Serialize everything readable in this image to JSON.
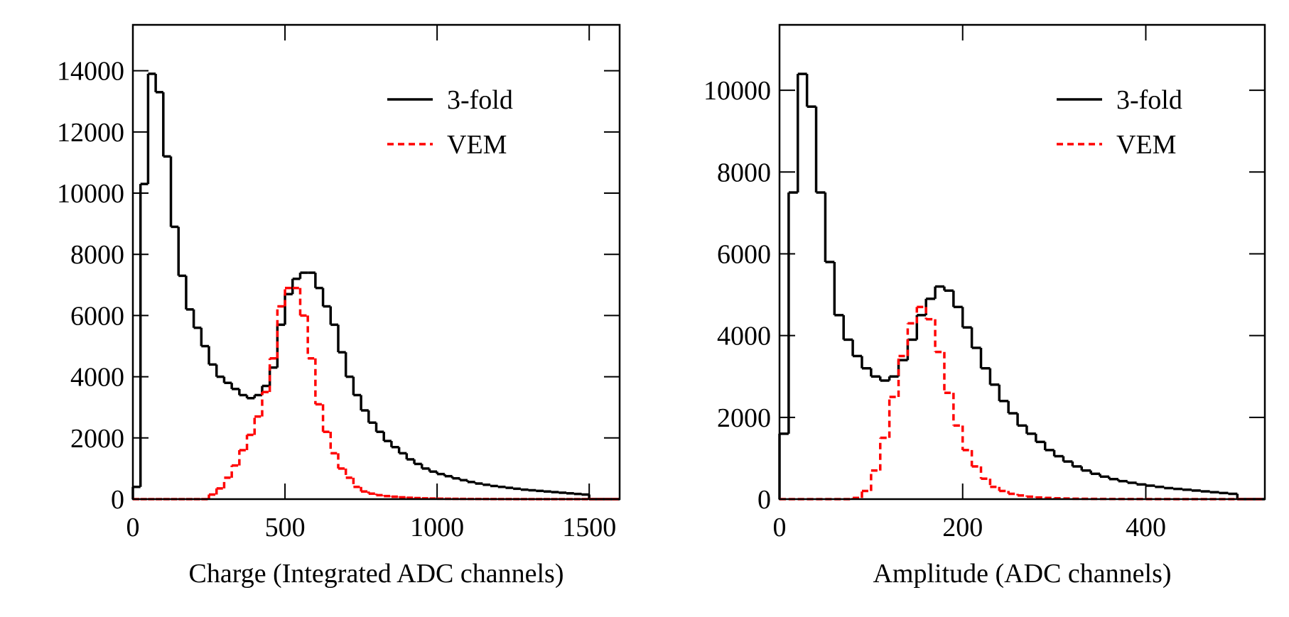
{
  "chart_data": [
    {
      "type": "histogram",
      "xlabel": "Charge (Integrated ADC channels)",
      "bins": [
        0,
        25,
        50,
        75,
        100,
        125,
        150,
        175,
        200,
        225,
        250,
        275,
        300,
        325,
        350,
        375,
        400,
        425,
        450,
        475,
        500,
        525,
        550,
        575,
        600,
        625,
        650,
        675,
        700,
        725,
        750,
        775,
        800,
        825,
        850,
        875,
        900,
        925,
        950,
        975,
        1000,
        1025,
        1050,
        1075,
        1100,
        1125,
        1150,
        1175,
        1200,
        1225,
        1250,
        1275,
        1300,
        1325,
        1350,
        1375,
        1400,
        1425,
        1450,
        1475,
        1500,
        1525,
        1550,
        1575,
        1600
      ],
      "series": [
        {
          "name": "3-fold",
          "color": "#000000",
          "dashed": false,
          "values": [
            400,
            10300,
            13900,
            13300,
            11200,
            8900,
            7300,
            6200,
            5600,
            5000,
            4400,
            4000,
            3800,
            3600,
            3400,
            3300,
            3400,
            3700,
            4300,
            5700,
            6700,
            7200,
            7400,
            7400,
            6900,
            6300,
            5700,
            4800,
            4000,
            3400,
            2900,
            2500,
            2200,
            1900,
            1700,
            1500,
            1300,
            1150,
            1000,
            900,
            820,
            750,
            680,
            620,
            560,
            510,
            470,
            430,
            400,
            370,
            340,
            310,
            290,
            270,
            250,
            230,
            210,
            190,
            170,
            150,
            0,
            0,
            0,
            0
          ]
        },
        {
          "name": "VEM",
          "color": "#ff0000",
          "dashed": true,
          "values": [
            0,
            0,
            0,
            0,
            0,
            0,
            0,
            0,
            0,
            0,
            150,
            350,
            700,
            1100,
            1600,
            2100,
            2700,
            3500,
            4600,
            6300,
            6900,
            6900,
            6000,
            4600,
            3100,
            2200,
            1500,
            1000,
            700,
            400,
            250,
            180,
            130,
            100,
            80,
            60,
            45,
            35,
            25,
            20,
            15,
            12,
            10,
            8,
            6,
            5,
            4,
            3,
            2,
            2,
            1,
            1,
            0,
            0,
            0,
            0,
            0,
            0,
            0,
            0,
            0,
            0,
            0,
            0
          ]
        }
      ],
      "xlim": [
        0,
        1600
      ],
      "xticks": [
        0,
        500,
        1000,
        1500
      ],
      "ylim": [
        0,
        15500
      ],
      "yticks": [
        0,
        2000,
        4000,
        6000,
        8000,
        10000,
        12000,
        14000
      ]
    },
    {
      "type": "histogram",
      "xlabel": "Amplitude (ADC channels)",
      "bins": [
        0,
        10,
        20,
        30,
        40,
        50,
        60,
        70,
        80,
        90,
        100,
        110,
        120,
        130,
        140,
        150,
        160,
        170,
        180,
        190,
        200,
        210,
        220,
        230,
        240,
        250,
        260,
        270,
        280,
        290,
        300,
        310,
        320,
        330,
        340,
        350,
        360,
        370,
        380,
        390,
        400,
        410,
        420,
        430,
        440,
        450,
        460,
        470,
        480,
        490,
        500,
        510,
        520,
        530
      ],
      "series": [
        {
          "name": "3-fold",
          "color": "#000000",
          "dashed": false,
          "values": [
            1600,
            7500,
            10400,
            9600,
            7500,
            5800,
            4500,
            3900,
            3500,
            3200,
            3000,
            2900,
            3000,
            3400,
            3900,
            4500,
            4900,
            5200,
            5100,
            4700,
            4200,
            3700,
            3200,
            2800,
            2400,
            2100,
            1800,
            1600,
            1400,
            1200,
            1050,
            920,
            800,
            700,
            620,
            550,
            490,
            440,
            400,
            360,
            330,
            300,
            270,
            250,
            230,
            210,
            190,
            170,
            150,
            130,
            0,
            0,
            0
          ]
        },
        {
          "name": "VEM",
          "color": "#ff0000",
          "dashed": true,
          "values": [
            0,
            0,
            0,
            0,
            0,
            0,
            0,
            0,
            30,
            200,
            700,
            1500,
            2500,
            3500,
            4300,
            4700,
            4400,
            3600,
            2600,
            1800,
            1200,
            800,
            500,
            300,
            200,
            130,
            90,
            60,
            40,
            30,
            20,
            15,
            10,
            8,
            6,
            5,
            4,
            3,
            2,
            2,
            1,
            1,
            1,
            0,
            0,
            0,
            0,
            0,
            0,
            0,
            0,
            0,
            0
          ]
        }
      ],
      "xlim": [
        0,
        530
      ],
      "xticks": [
        0,
        200,
        400
      ],
      "ylim": [
        0,
        11600
      ],
      "yticks": [
        0,
        2000,
        4000,
        6000,
        8000,
        10000
      ]
    }
  ]
}
